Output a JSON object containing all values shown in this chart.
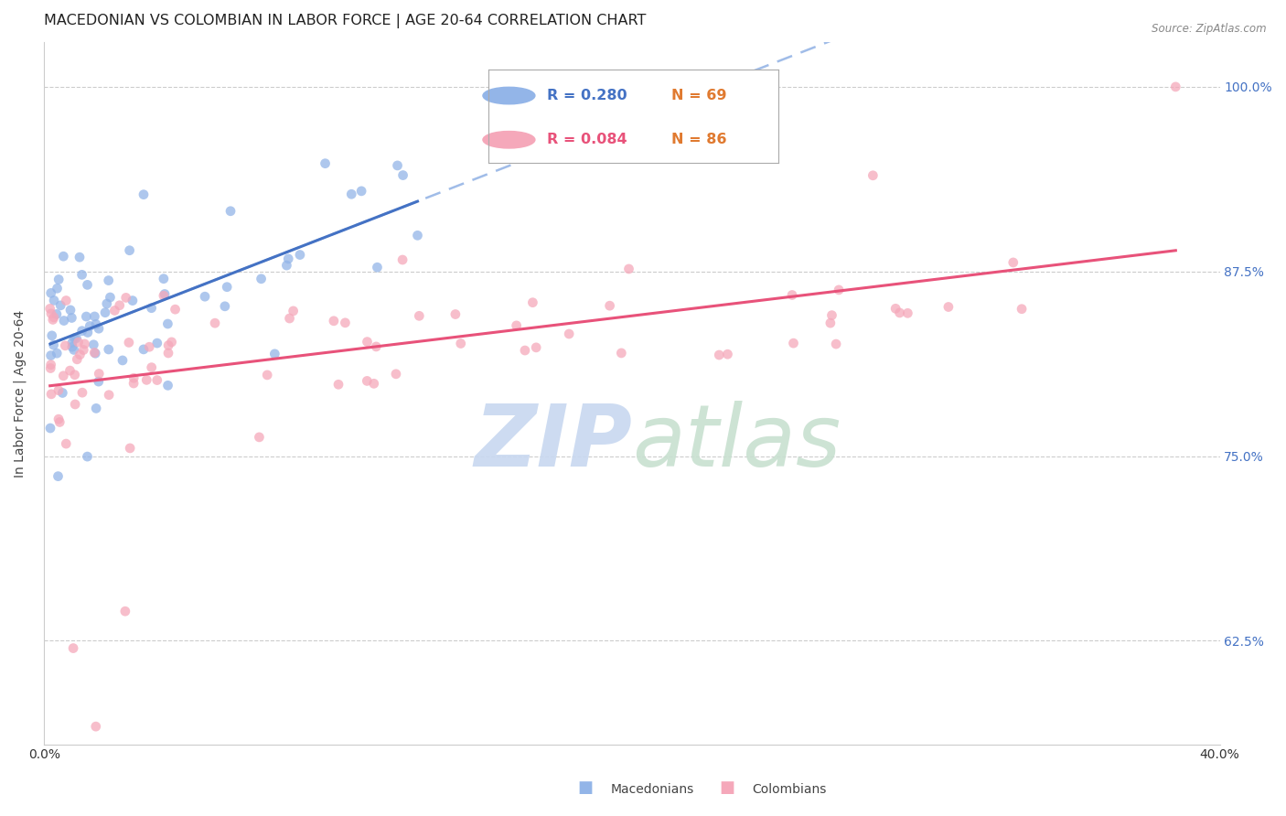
{
  "title": "MACEDONIAN VS COLOMBIAN IN LABOR FORCE | AGE 20-64 CORRELATION CHART",
  "source": "Source: ZipAtlas.com",
  "ylabel": "In Labor Force | Age 20-64",
  "xlim": [
    0.0,
    0.4
  ],
  "ylim": [
    0.555,
    1.03
  ],
  "yticks": [
    0.625,
    0.75,
    0.875,
    1.0
  ],
  "ytick_labels": [
    "62.5%",
    "75.0%",
    "87.5%",
    "100.0%"
  ],
  "xticks": [
    0.0,
    0.05,
    0.1,
    0.15,
    0.2,
    0.25,
    0.3,
    0.35,
    0.4
  ],
  "xtick_labels": [
    "0.0%",
    "",
    "",
    "",
    "",
    "",
    "",
    "",
    "40.0%"
  ],
  "mac_color": "#93b5e8",
  "col_color": "#f5a8ba",
  "mac_trend_color": "#4472c4",
  "col_trend_color": "#e8527a",
  "mac_dashed_color": "#a0bce8",
  "background_color": "#ffffff",
  "title_fontsize": 11.5,
  "axis_label_fontsize": 10,
  "tick_fontsize": 10,
  "right_tick_color": "#4472c4",
  "watermark_zip_color": "#c8d8f0",
  "watermark_atlas_color": "#c8e0d0",
  "legend_mac_r": "R = 0.280",
  "legend_mac_n": "N = 69",
  "legend_col_r": "R = 0.084",
  "legend_col_n": "N = 86",
  "legend_r_color_mac": "#4472c4",
  "legend_r_color_col": "#e8527a",
  "legend_n_color": "#e07a30"
}
